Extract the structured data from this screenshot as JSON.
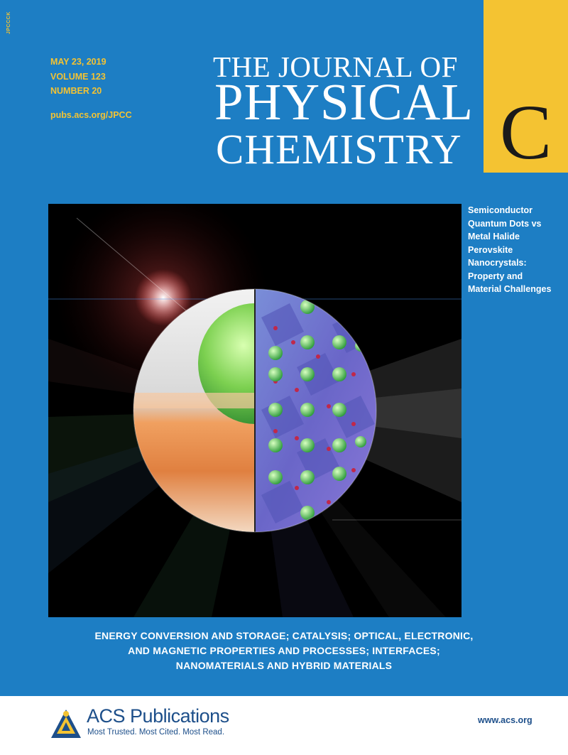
{
  "cover": {
    "spine_code": "JPCCCK",
    "date": "MAY 23, 2019",
    "volume": "VOLUME 123",
    "number": "NUMBER 20",
    "url": "pubs.acs.org/JPCC",
    "title_line1": "THE JOURNAL OF",
    "title_line2": "PHYSICAL",
    "title_line3": "CHEMISTRY",
    "section_letter": "C",
    "feature_article": [
      "Semiconductor",
      "Quantum Dots vs",
      "Metal Halide",
      "Perovskite",
      "Nanocrystals:",
      "Property and",
      "Material Challenges"
    ],
    "topics": [
      "ENERGY CONVERSION AND STORAGE; CATALYSIS; OPTICAL, ELECTRONIC,",
      "AND MAGNETIC PROPERTIES AND PROCESSES; INTERFACES;",
      "NANOMATERIALS AND HYBRID MATERIALS"
    ]
  },
  "footer": {
    "brand_acs": "ACS",
    "brand_pub": "Publications",
    "tagline": "Most Trusted. Most Cited. Most Read.",
    "website": "www.acs.org"
  },
  "colors": {
    "cover_blue": "#1d7ec4",
    "accent_yellow": "#f4c332",
    "footer_navy": "#1d4f8a"
  }
}
